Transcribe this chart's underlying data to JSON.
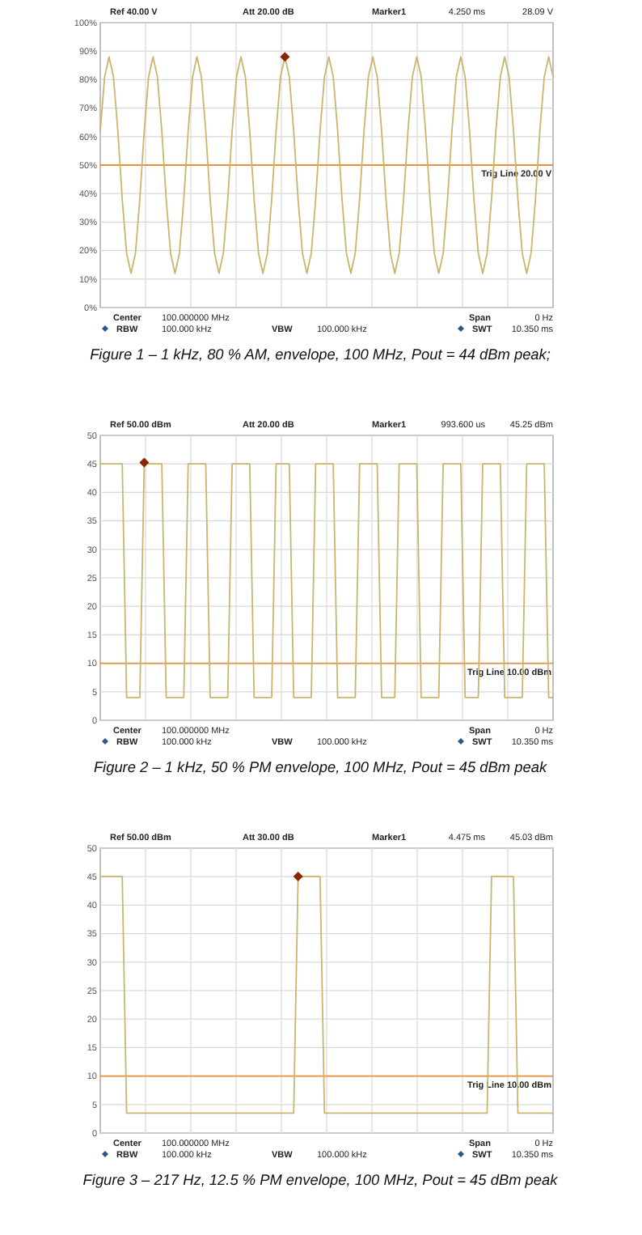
{
  "chart_data": [
    {
      "type": "line",
      "title": "Figure 1 – 1 kHz, 80 % AM, envelope, 100 MHz, Pout = 44 dBm peak;",
      "grid": true,
      "tick_labels": "y",
      "categories": [
        null,
        null,
        null,
        null,
        null,
        null,
        null,
        null,
        null,
        null,
        null,
        null,
        null,
        null,
        null,
        null,
        null,
        null,
        null,
        null,
        null,
        null,
        null,
        null,
        null,
        null,
        null,
        null,
        null,
        null,
        null,
        null,
        null,
        null,
        null,
        null,
        null,
        null,
        null,
        null,
        null,
        null,
        null,
        null,
        null,
        null,
        null,
        null,
        null,
        null,
        null,
        null,
        null,
        null,
        null,
        null,
        null,
        null,
        null,
        null,
        null,
        null,
        null,
        null,
        null,
        null,
        null,
        null,
        null,
        null,
        null,
        null,
        null,
        null,
        null,
        null,
        null,
        null,
        null,
        null,
        null,
        null,
        null,
        null,
        null,
        null,
        null,
        null,
        null,
        null,
        null,
        null,
        null,
        null,
        null,
        null,
        null,
        null,
        null,
        null,
        null,
        null,
        null,
        null
      ],
      "ylim": [
        0,
        100
      ],
      "yticks": [
        {
          "value": 0,
          "label": "0%"
        },
        {
          "value": 10,
          "label": "10%"
        },
        {
          "value": 20,
          "label": "20%"
        },
        {
          "value": 30,
          "label": "30%"
        },
        {
          "value": 40,
          "label": "40%"
        },
        {
          "value": 50,
          "label": "50%"
        },
        {
          "value": 60,
          "label": "60%"
        },
        {
          "value": 70,
          "label": "70%"
        },
        {
          "value": 80,
          "label": "80%"
        },
        {
          "value": 90,
          "label": "90%"
        },
        {
          "value": 100,
          "label": "100%"
        }
      ],
      "series": [
        {
          "marker": "none",
          "color": "#c9b66b",
          "values": [
            62,
            81,
            88,
            81,
            62,
            38,
            19,
            12,
            19,
            38,
            62,
            81,
            88,
            81,
            62,
            38,
            19,
            12,
            19,
            38,
            62,
            81,
            88,
            81,
            62,
            38,
            19,
            12,
            19,
            38,
            62,
            81,
            88,
            81,
            62,
            38,
            19,
            12,
            19,
            38,
            62,
            81,
            88,
            81,
            62,
            38,
            19,
            12,
            19,
            38,
            62,
            81,
            88,
            81,
            62,
            38,
            19,
            12,
            19,
            38,
            62,
            81,
            88,
            81,
            62,
            38,
            19,
            12,
            19,
            38,
            62,
            81,
            88,
            81,
            62,
            38,
            19,
            12,
            19,
            38,
            62,
            81,
            88,
            81,
            62,
            38,
            19,
            12,
            19,
            38,
            62,
            81,
            88,
            81,
            62,
            38,
            19,
            12,
            19,
            38,
            62,
            81,
            88,
            81
          ]
        },
        {
          "type": "scatter",
          "marker": "diamond",
          "color": "#8b2500",
          "values": [
            null,
            null,
            null,
            null,
            null,
            null,
            null,
            null,
            null,
            null,
            null,
            null,
            null,
            null,
            null,
            null,
            null,
            null,
            null,
            null,
            null,
            null,
            null,
            null,
            null,
            null,
            null,
            null,
            null,
            null,
            null,
            null,
            null,
            null,
            null,
            null,
            null,
            null,
            null,
            null,
            null,
            null,
            88,
            null,
            null,
            null,
            null,
            null,
            null,
            null,
            null,
            null,
            null,
            null,
            null,
            null,
            null,
            null,
            null,
            null,
            null,
            null,
            null,
            null,
            null,
            null,
            null,
            null,
            null,
            null,
            null,
            null,
            null,
            null,
            null,
            null,
            null,
            null,
            null,
            null,
            null,
            null,
            null,
            null,
            null,
            null,
            null,
            null,
            null,
            null,
            null,
            null,
            null,
            null,
            null,
            null,
            null,
            null,
            null,
            null,
            null,
            null,
            null,
            null
          ]
        }
      ],
      "ref_lines": [
        {
          "axis": "y",
          "value": 50,
          "label": "Trig Line 20.00 V",
          "color": "#e8903a"
        }
      ],
      "annotations": [
        "Ref 40.00 V",
        "Att 20.00 dB",
        "Marker1",
        "4.250 ms",
        "28.09 V",
        "Center",
        "100.000000 MHz",
        "Span",
        "0 Hz",
        "RBW",
        "100.000 kHz",
        "VBW",
        "100.000 kHz",
        "SWT",
        "10.350 ms"
      ]
    },
    {
      "type": "line",
      "title": "Figure 2 – 1 kHz, 50 % PM envelope, 100 MHz, Pout = 45 dBm peak",
      "grid": true,
      "tick_labels": "y",
      "categories": [
        null,
        null,
        null,
        null,
        null,
        null,
        null,
        null,
        null,
        null,
        null,
        null,
        null,
        null,
        null,
        null,
        null,
        null,
        null,
        null,
        null,
        null,
        null,
        null,
        null,
        null,
        null,
        null,
        null,
        null,
        null,
        null,
        null,
        null,
        null,
        null,
        null,
        null,
        null,
        null,
        null,
        null,
        null,
        null,
        null,
        null,
        null,
        null,
        null,
        null,
        null,
        null,
        null,
        null,
        null,
        null,
        null,
        null,
        null,
        null,
        null,
        null,
        null,
        null,
        null,
        null,
        null,
        null,
        null,
        null,
        null,
        null,
        null,
        null,
        null,
        null,
        null,
        null,
        null,
        null,
        null,
        null,
        null,
        null,
        null,
        null,
        null,
        null,
        null,
        null,
        null,
        null,
        null,
        null,
        null,
        null,
        null,
        null,
        null,
        null,
        null,
        null,
        null,
        null
      ],
      "ylim": [
        0,
        50
      ],
      "yticks": [
        0,
        5,
        10,
        15,
        20,
        25,
        30,
        35,
        40,
        45,
        50
      ],
      "series": [
        {
          "marker": "none",
          "color": "#c9b66b",
          "values": [
            45,
            45,
            45,
            45,
            45,
            45,
            4,
            4,
            4,
            4,
            45,
            45,
            45,
            45,
            45,
            4,
            4,
            4,
            4,
            4,
            45,
            45,
            45,
            45,
            45,
            4,
            4,
            4,
            4,
            4,
            45,
            45,
            45,
            45,
            45,
            4,
            4,
            4,
            4,
            4,
            45,
            45,
            45,
            45,
            4,
            4,
            4,
            4,
            4,
            45,
            45,
            45,
            45,
            45,
            4,
            4,
            4,
            4,
            4,
            45,
            45,
            45,
            45,
            45,
            4,
            4,
            4,
            4,
            45,
            45,
            45,
            45,
            45,
            4,
            4,
            4,
            4,
            4,
            45,
            45,
            45,
            45,
            45,
            4,
            4,
            4,
            4,
            45,
            45,
            45,
            45,
            45,
            4,
            4,
            4,
            4,
            4,
            45,
            45,
            45,
            45,
            45,
            4,
            4
          ]
        },
        {
          "type": "scatter",
          "marker": "diamond",
          "color": "#8b2500",
          "values": [
            null,
            null,
            null,
            null,
            null,
            null,
            null,
            null,
            null,
            null,
            45.25,
            null,
            null,
            null,
            null,
            null,
            null,
            null,
            null,
            null,
            null,
            null,
            null,
            null,
            null,
            null,
            null,
            null,
            null,
            null,
            null,
            null,
            null,
            null,
            null,
            null,
            null,
            null,
            null,
            null,
            null,
            null,
            null,
            null,
            null,
            null,
            null,
            null,
            null,
            null,
            null,
            null,
            null,
            null,
            null,
            null,
            null,
            null,
            null,
            null,
            null,
            null,
            null,
            null,
            null,
            null,
            null,
            null,
            null,
            null,
            null,
            null,
            null,
            null,
            null,
            null,
            null,
            null,
            null,
            null,
            null,
            null,
            null,
            null,
            null,
            null,
            null,
            null,
            null,
            null,
            null,
            null,
            null,
            null,
            null,
            null,
            null,
            null,
            null,
            null,
            null,
            null,
            null,
            null
          ]
        }
      ],
      "ref_lines": [
        {
          "axis": "y",
          "value": 10,
          "label": "Trig Line 10.00 dBm",
          "color": "#e8903a"
        }
      ],
      "annotations": [
        "Ref 50.00 dBm",
        "Att 20.00 dB",
        "Marker1",
        "993.600 us",
        "45.25 dBm",
        "Center",
        "100.000000 MHz",
        "Span",
        "0 Hz",
        "RBW",
        "100.000 kHz",
        "VBW",
        "100.000 kHz",
        "SWT",
        "10.350 ms"
      ]
    },
    {
      "type": "line",
      "title": "Figure 3 – 217 Hz, 12.5 % PM envelope, 100 MHz, Pout = 45 dBm peak",
      "grid": true,
      "tick_labels": "y",
      "categories": [
        null,
        null,
        null,
        null,
        null,
        null,
        null,
        null,
        null,
        null,
        null,
        null,
        null,
        null,
        null,
        null,
        null,
        null,
        null,
        null,
        null,
        null,
        null,
        null,
        null,
        null,
        null,
        null,
        null,
        null,
        null,
        null,
        null,
        null,
        null,
        null,
        null,
        null,
        null,
        null,
        null,
        null,
        null,
        null,
        null,
        null,
        null,
        null,
        null,
        null,
        null,
        null,
        null,
        null,
        null,
        null,
        null,
        null,
        null,
        null,
        null,
        null,
        null,
        null,
        null,
        null,
        null,
        null,
        null,
        null,
        null,
        null,
        null,
        null,
        null,
        null,
        null,
        null,
        null,
        null,
        null,
        null,
        null,
        null,
        null,
        null,
        null,
        null,
        null,
        null,
        null,
        null,
        null,
        null,
        null,
        null,
        null,
        null,
        null,
        null,
        null,
        null,
        null,
        null
      ],
      "ylim": [
        0,
        50
      ],
      "yticks": [
        0,
        5,
        10,
        15,
        20,
        25,
        30,
        35,
        40,
        45,
        50
      ],
      "series": [
        {
          "marker": "none",
          "color": "#c9b66b",
          "values": [
            45,
            45,
            45,
            45,
            45,
            45,
            3.5,
            3.5,
            3.5,
            3.5,
            3.5,
            3.5,
            3.5,
            3.5,
            3.5,
            3.5,
            3.5,
            3.5,
            3.5,
            3.5,
            3.5,
            3.5,
            3.5,
            3.5,
            3.5,
            3.5,
            3.5,
            3.5,
            3.5,
            3.5,
            3.5,
            3.5,
            3.5,
            3.5,
            3.5,
            3.5,
            3.5,
            3.5,
            3.5,
            3.5,
            3.5,
            3.5,
            3.5,
            3.5,
            3.5,
            45,
            45,
            45,
            45,
            45,
            45,
            3.5,
            3.5,
            3.5,
            3.5,
            3.5,
            3.5,
            3.5,
            3.5,
            3.5,
            3.5,
            3.5,
            3.5,
            3.5,
            3.5,
            3.5,
            3.5,
            3.5,
            3.5,
            3.5,
            3.5,
            3.5,
            3.5,
            3.5,
            3.5,
            3.5,
            3.5,
            3.5,
            3.5,
            3.5,
            3.5,
            3.5,
            3.5,
            3.5,
            3.5,
            3.5,
            3.5,
            3.5,
            3.5,
            45,
            45,
            45,
            45,
            45,
            45,
            3.5,
            3.5,
            3.5,
            3.5,
            3.5,
            3.5,
            3.5,
            3.5,
            3.5
          ]
        },
        {
          "type": "scatter",
          "marker": "diamond",
          "color": "#8b2500",
          "values": [
            null,
            null,
            null,
            null,
            null,
            null,
            null,
            null,
            null,
            null,
            null,
            null,
            null,
            null,
            null,
            null,
            null,
            null,
            null,
            null,
            null,
            null,
            null,
            null,
            null,
            null,
            null,
            null,
            null,
            null,
            null,
            null,
            null,
            null,
            null,
            null,
            null,
            null,
            null,
            null,
            null,
            null,
            null,
            null,
            null,
            45.03,
            null,
            null,
            null,
            null,
            null,
            null,
            null,
            null,
            null,
            null,
            null,
            null,
            null,
            null,
            null,
            null,
            null,
            null,
            null,
            null,
            null,
            null,
            null,
            null,
            null,
            null,
            null,
            null,
            null,
            null,
            null,
            null,
            null,
            null,
            null,
            null,
            null,
            null,
            null,
            null,
            null,
            null,
            null,
            null,
            null,
            null,
            null,
            null,
            null,
            null,
            null,
            null,
            null,
            null,
            null,
            null,
            null,
            null
          ]
        }
      ],
      "ref_lines": [
        {
          "axis": "y",
          "value": 10,
          "label": "Trig Line 10.00 dBm",
          "color": "#e8903a"
        }
      ],
      "annotations": [
        "Ref 50.00 dBm",
        "Att 30.00 dB",
        "Marker1",
        "4.475 ms",
        "45.03 dBm",
        "Center",
        "100.000000 MHz",
        "Span",
        "0 Hz",
        "RBW",
        "100.000 kHz",
        "VBW",
        "100.000 kHz",
        "SWT",
        "10.350 ms"
      ]
    }
  ]
}
